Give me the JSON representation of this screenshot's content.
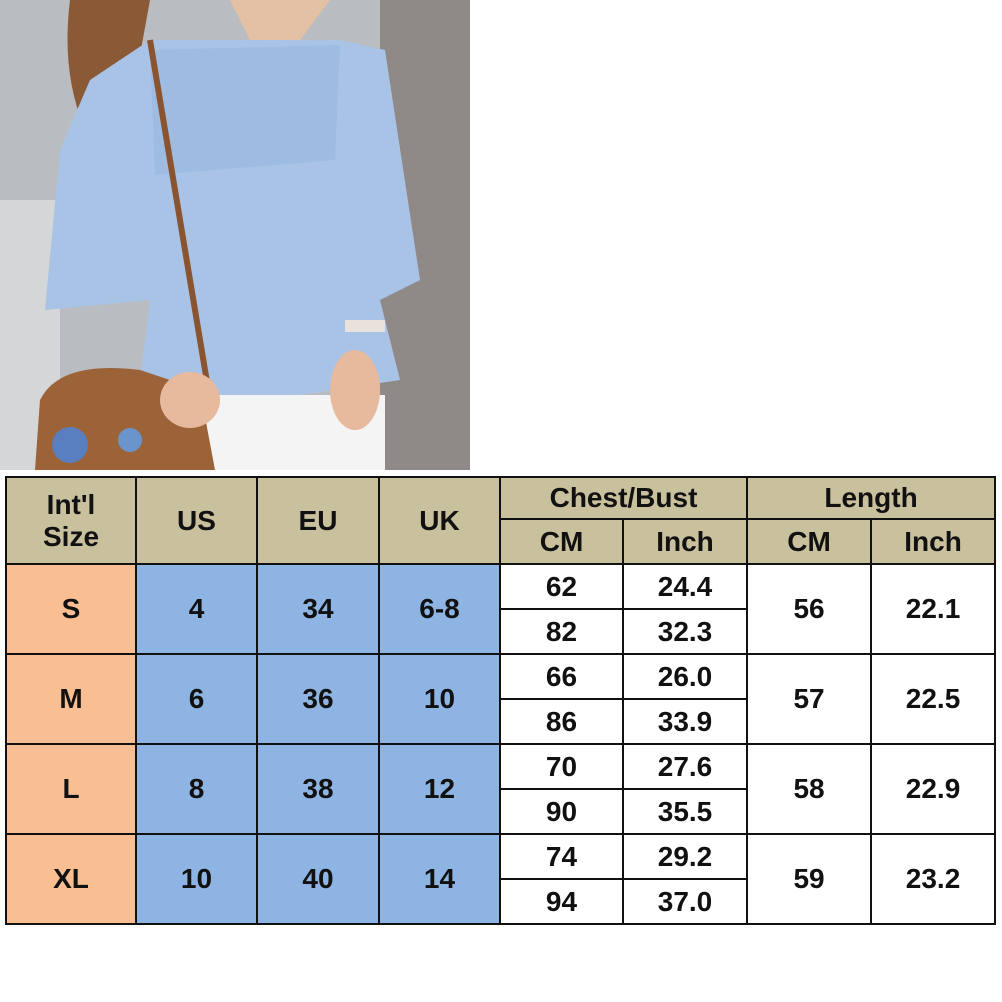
{
  "product_photo": {
    "description_icon": "model-wearing-blue-off-shoulder-top"
  },
  "size_chart": {
    "headers": {
      "intl_size": "Int'l Size",
      "us": "US",
      "eu": "EU",
      "uk": "UK",
      "chest_bust": "Chest/Bust",
      "length": "Length",
      "cm": "CM",
      "inch": "Inch"
    },
    "rows": [
      {
        "size": "S",
        "us": "4",
        "eu": "34",
        "uk": "6-8",
        "chest_cm": [
          "62",
          "82"
        ],
        "chest_inch": [
          "24.4",
          "32.3"
        ],
        "length_cm": "56",
        "length_inch": "22.1"
      },
      {
        "size": "M",
        "us": "6",
        "eu": "36",
        "uk": "10",
        "chest_cm": [
          "66",
          "86"
        ],
        "chest_inch": [
          "26.0",
          "33.9"
        ],
        "length_cm": "57",
        "length_inch": "22.5"
      },
      {
        "size": "L",
        "us": "8",
        "eu": "38",
        "uk": "12",
        "chest_cm": [
          "70",
          "90"
        ],
        "chest_inch": [
          "27.6",
          "35.5"
        ],
        "length_cm": "58",
        "length_inch": "22.9"
      },
      {
        "size": "XL",
        "us": "10",
        "eu": "40",
        "uk": "14",
        "chest_cm": [
          "74",
          "94"
        ],
        "chest_inch": [
          "29.2",
          "37.0"
        ],
        "length_cm": "59",
        "length_inch": "23.2"
      }
    ],
    "colors": {
      "header": "#c9c09d",
      "size_col": "#f9be92",
      "region_cols": "#8db4e2",
      "measure_cols": "#ffffff"
    }
  }
}
